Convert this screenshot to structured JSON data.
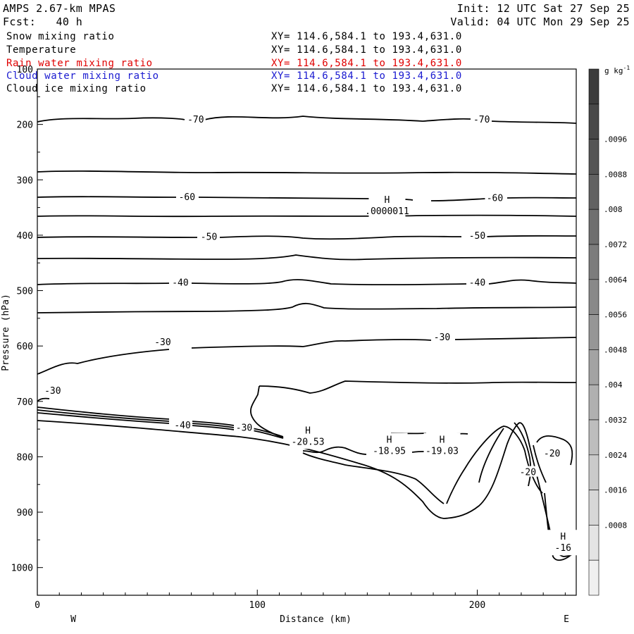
{
  "header": {
    "model": "AMPS 2.67-km MPAS",
    "forecast": "Fcst:   40 h",
    "init": "Init: 12 UTC Sat 27 Sep 25",
    "valid": "Valid: 04 UTC Mon 29 Sep 25"
  },
  "fields": [
    {
      "name": "Snow mixing ratio",
      "xy": "XY= 114.6,584.1 to 193.4,631.0",
      "color": "#000000"
    },
    {
      "name": "Temperature",
      "xy": "XY= 114.6,584.1 to 193.4,631.0",
      "color": "#000000"
    },
    {
      "name": "Rain water mixing ratio",
      "xy": "XY= 114.6,584.1 to 193.4,631.0",
      "color": "#e00000"
    },
    {
      "name": "Cloud water mixing ratio",
      "xy": "XY= 114.6,584.1 to 193.4,631.0",
      "color": "#1a1ad0"
    },
    {
      "name": "Cloud ice mixing ratio",
      "xy": "XY= 114.6,584.1 to 193.4,631.0",
      "color": "#000000"
    }
  ],
  "chart_data": {
    "type": "contour-cross-section",
    "xlabel": "Distance (km)",
    "ylabel": "Pressure (hPa)",
    "xlim": [
      0,
      245
    ],
    "ylim": [
      1050,
      100
    ],
    "x_ticks": [
      0,
      100,
      200
    ],
    "y_ticks": [
      100,
      200,
      300,
      400,
      500,
      600,
      700,
      800,
      900,
      1000
    ],
    "x_end_labels": {
      "left": "W",
      "right": "E"
    },
    "colorbar": {
      "unit": "g kg",
      "unit_exp": "-1",
      "labels": [
        ".0096",
        ".0088",
        ".008",
        ".0072",
        ".0064",
        ".0056",
        ".0048",
        ".004",
        ".0032",
        ".0024",
        ".0016",
        ".0008"
      ],
      "shades": [
        "#3c3c3c",
        "#484848",
        "#555555",
        "#626262",
        "#6f6f6f",
        "#7c7c7c",
        "#898989",
        "#969696",
        "#a3a3a3",
        "#b0b0b0",
        "#bdbdbd",
        "#cacaca",
        "#d7d7d7",
        "#e4e4e4",
        "#f0f0f0"
      ]
    },
    "temperature_labels": [
      {
        "text": "-70",
        "x": 72,
        "p": 190
      },
      {
        "text": "-70",
        "x": 202,
        "p": 190
      },
      {
        "text": "-60",
        "x": 68,
        "p": 330
      },
      {
        "text": "-60",
        "x": 208,
        "p": 332
      },
      {
        "text": "-50",
        "x": 78,
        "p": 402
      },
      {
        "text": "-50",
        "x": 200,
        "p": 400
      },
      {
        "text": "-40",
        "x": 65,
        "p": 485
      },
      {
        "text": "-40",
        "x": 200,
        "p": 485
      },
      {
        "text": "-30",
        "x": 57,
        "p": 592
      },
      {
        "text": "-30",
        "x": 184,
        "p": 583
      },
      {
        "text": "-30",
        "x": 7,
        "p": 680
      },
      {
        "text": "-40",
        "x": 66,
        "p": 742
      },
      {
        "text": "-30",
        "x": 94,
        "p": 747
      },
      {
        "text": "-20",
        "x": 234,
        "p": 793
      },
      {
        "text": "-20",
        "x": 223,
        "p": 827
      }
    ],
    "extrema": [
      {
        "mark": "H",
        "value": ".0000011",
        "x": 159,
        "p": 352
      },
      {
        "mark": "H",
        "value": "-20.53",
        "x": 123,
        "p": 768
      },
      {
        "mark": "H",
        "value": "-18.95",
        "x": 160,
        "p": 785
      },
      {
        "mark": "H",
        "value": "-19.03",
        "x": 184,
        "p": 785
      },
      {
        "mark": "H",
        "value": "-16",
        "x": 239,
        "p": 960
      }
    ]
  }
}
